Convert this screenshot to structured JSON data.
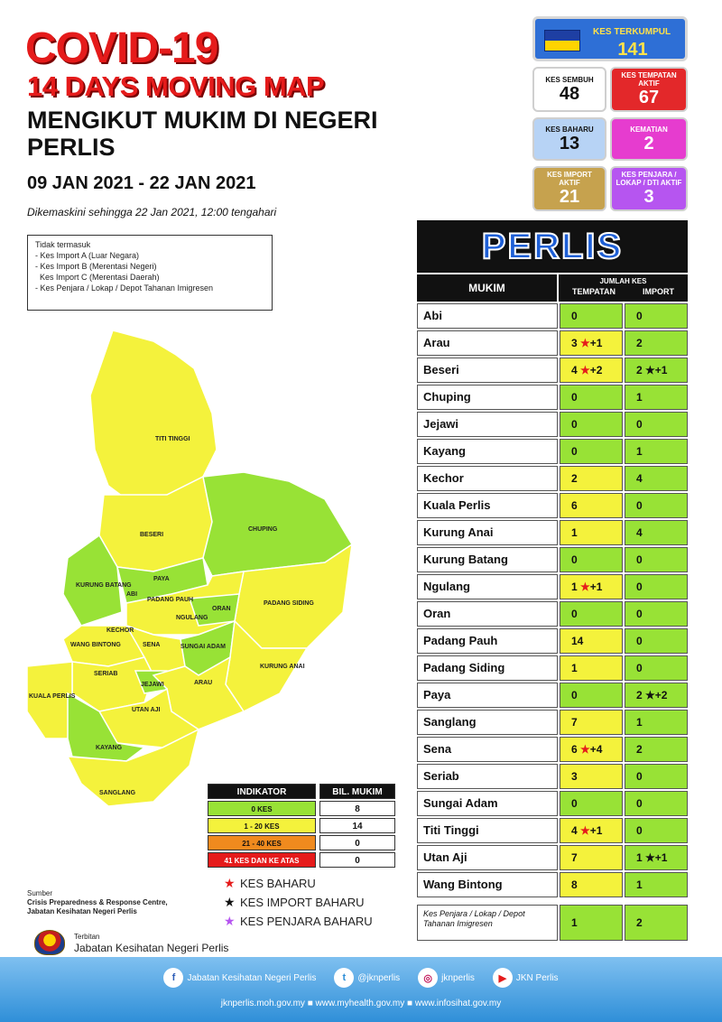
{
  "title": {
    "line1": "COVID-19",
    "line2": "14 DAYS MOVING MAP",
    "line3": "MENGIKUT MUKIM DI NEGERI PERLIS",
    "dates": "09 JAN 2021 - 22 JAN 2021",
    "updated": "Dikemaskini sehingga 22 Jan 2021, 12:00 tengahari"
  },
  "stats": {
    "terkumpul": {
      "label": "KES TERKUMPUL",
      "value": "141"
    },
    "sembuh": {
      "label": "KES SEMBUH",
      "value": "48"
    },
    "tempatan_aktif": {
      "label": "KES TEMPATAN AKTIF",
      "value": "67"
    },
    "baharu": {
      "label": "KES BAHARU",
      "value": "13"
    },
    "kematian": {
      "label": "KEMATIAN",
      "value": "2"
    },
    "import_aktif": {
      "label": "KES IMPORT AKTIF",
      "value": "21"
    },
    "penjara_aktif": {
      "label": "KES PENJARA / LOKAP / DTI AKTIF",
      "value": "3"
    }
  },
  "exclusions": {
    "heading": "Tidak termasuk",
    "items": [
      "- Kes Import A (Luar Negara)",
      "- Kes Import B (Merentasi Negeri)",
      "  Kes Import C (Merentasi Daerah)",
      "- Kes Penjara / Lokap / Depot Tahanan Imigresen"
    ]
  },
  "map": {
    "labels": [
      "TITI TINGGI",
      "BESERI",
      "CHUPING",
      "PAYA",
      "KURUNG BATANG",
      "ABI",
      "PADANG PAUH",
      "NGULANG",
      "ORAN",
      "PADANG SIDING",
      "KECHOR",
      "WANG BINTONG",
      "SENA",
      "SUNGAI ADAM",
      "KURUNG ANAI",
      "SERIAB",
      "JEJAWI",
      "ARAU",
      "UTAN AJI",
      "KUALA PERLIS",
      "KAYANG",
      "SANGLANG"
    ],
    "colors": {
      "green": "#98e236",
      "yellow": "#f4f23c"
    }
  },
  "indicator": {
    "header": [
      "INDIKATOR",
      "BIL. MUKIM"
    ],
    "rows": [
      {
        "label": "0 KES",
        "count": "8",
        "color": "#98e236"
      },
      {
        "label": "1 - 20 KES",
        "count": "14",
        "color": "#f4f23c"
      },
      {
        "label": "21 - 40 KES",
        "count": "0",
        "color": "#f08a1e"
      },
      {
        "label": "41 KES DAN KE ATAS",
        "count": "0",
        "color": "#e51b1b"
      }
    ]
  },
  "keys": [
    {
      "label": "KES BAHARU",
      "color": "#e51b1b"
    },
    {
      "label": "KES IMPORT BAHARU",
      "color": "#111111"
    },
    {
      "label": "KES PENJARA BAHARU",
      "color": "#b655f0"
    }
  ],
  "source": {
    "label": "Sumber",
    "line1": "Crisis Preparedness & Response Centre,",
    "line2": "Jabatan Kesihatan Negeri Perlis"
  },
  "publisher": {
    "label": "Terbitan",
    "name": "Jabatan Kesihatan Negeri Perlis"
  },
  "table": {
    "title": "PERLIS",
    "col_mukim": "MUKIM",
    "col_group": "JUMLAH KES",
    "col_tempatan": "TEMPATAN",
    "col_import": "IMPORT",
    "rows": [
      {
        "mukim": "Abi",
        "tempatan": "0",
        "import": "0"
      },
      {
        "mukim": "Arau",
        "tempatan": "3 ★+1",
        "import": "2"
      },
      {
        "mukim": "Beseri",
        "tempatan": "4 ★+2",
        "import": "2 ★+1"
      },
      {
        "mukim": "Chuping",
        "tempatan": "0",
        "import": "1"
      },
      {
        "mukim": "Jejawi",
        "tempatan": "0",
        "import": "0"
      },
      {
        "mukim": "Kayang",
        "tempatan": "0",
        "import": "1"
      },
      {
        "mukim": "Kechor",
        "tempatan": "2",
        "import": "4"
      },
      {
        "mukim": "Kuala Perlis",
        "tempatan": "6",
        "import": "0"
      },
      {
        "mukim": "Kurung Anai",
        "tempatan": "1",
        "import": "4"
      },
      {
        "mukim": "Kurung Batang",
        "tempatan": "0",
        "import": "0"
      },
      {
        "mukim": "Ngulang",
        "tempatan": "1 ★+1",
        "import": "0"
      },
      {
        "mukim": "Oran",
        "tempatan": "0",
        "import": "0"
      },
      {
        "mukim": "Padang Pauh",
        "tempatan": "14",
        "import": "0"
      },
      {
        "mukim": "Padang Siding",
        "tempatan": "1",
        "import": "0"
      },
      {
        "mukim": "Paya",
        "tempatan": "0",
        "import": "2 ★+2"
      },
      {
        "mukim": "Sanglang",
        "tempatan": "7",
        "import": "1"
      },
      {
        "mukim": "Sena",
        "tempatan": "6 ★+4",
        "import": "2"
      },
      {
        "mukim": "Seriab",
        "tempatan": "3",
        "import": "0"
      },
      {
        "mukim": "Sungai Adam",
        "tempatan": "0",
        "import": "0"
      },
      {
        "mukim": "Titi Tinggi",
        "tempatan": "4 ★+1",
        "import": "0"
      },
      {
        "mukim": "Utan Aji",
        "tempatan": "7",
        "import": "1 ★+1"
      },
      {
        "mukim": "Wang Bintong",
        "tempatan": "8",
        "import": "1"
      }
    ],
    "last_row": {
      "mukim": "Kes Penjara / Lokap / Depot Tahanan Imigresen",
      "tempatan": "1",
      "import": "2"
    }
  },
  "footer": {
    "facebook": "Jabatan Kesihatan Negeri Perlis",
    "twitter": "@jknperlis",
    "instagram": "jknperlis",
    "youtube": "JKN Perlis",
    "urls": "jknperlis.moh.gov.my ■ www.myhealth.gov.my ■ www.infosihat.gov.my"
  }
}
